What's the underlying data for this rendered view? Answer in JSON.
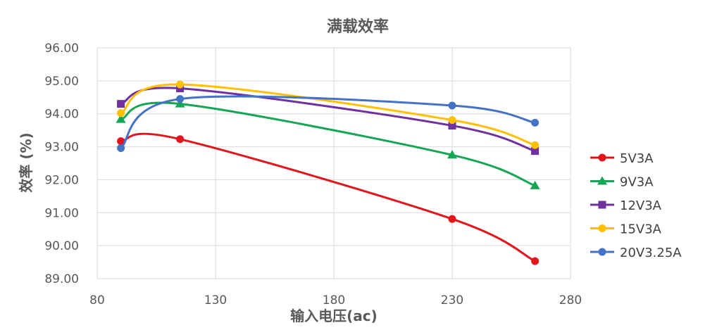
{
  "chart_data": {
    "type": "line",
    "title": "满载效率",
    "xlabel": "输入电压(ac)",
    "ylabel": "效率 (%)",
    "xlim": [
      80,
      280
    ],
    "ylim": [
      89,
      96
    ],
    "xticks": [
      "80",
      "130",
      "180",
      "230",
      "280"
    ],
    "yticks": [
      "89.00",
      "90.00",
      "91.00",
      "92.00",
      "93.00",
      "94.00",
      "95.00",
      "96.00"
    ],
    "grid": true,
    "legend": "right",
    "smooth": true,
    "x": [
      90,
      115,
      230,
      265
    ],
    "series": [
      {
        "name": "5V3A",
        "color": "#e3141b",
        "marker": "circle",
        "values": [
          93.17,
          93.23,
          90.81,
          89.53
        ]
      },
      {
        "name": "9V3A",
        "color": "#14a652",
        "marker": "triangle",
        "values": [
          93.83,
          94.3,
          92.75,
          91.82
        ]
      },
      {
        "name": "12V3A",
        "color": "#7030a0",
        "marker": "square",
        "values": [
          94.3,
          94.77,
          93.64,
          92.87
        ]
      },
      {
        "name": "15V3A",
        "color": "#ffc000",
        "marker": "circle",
        "values": [
          94.02,
          94.89,
          93.81,
          93.05
        ]
      },
      {
        "name": "20V3.25A",
        "color": "#4472c4",
        "marker": "circle",
        "values": [
          92.96,
          94.45,
          94.25,
          93.73
        ]
      }
    ]
  }
}
